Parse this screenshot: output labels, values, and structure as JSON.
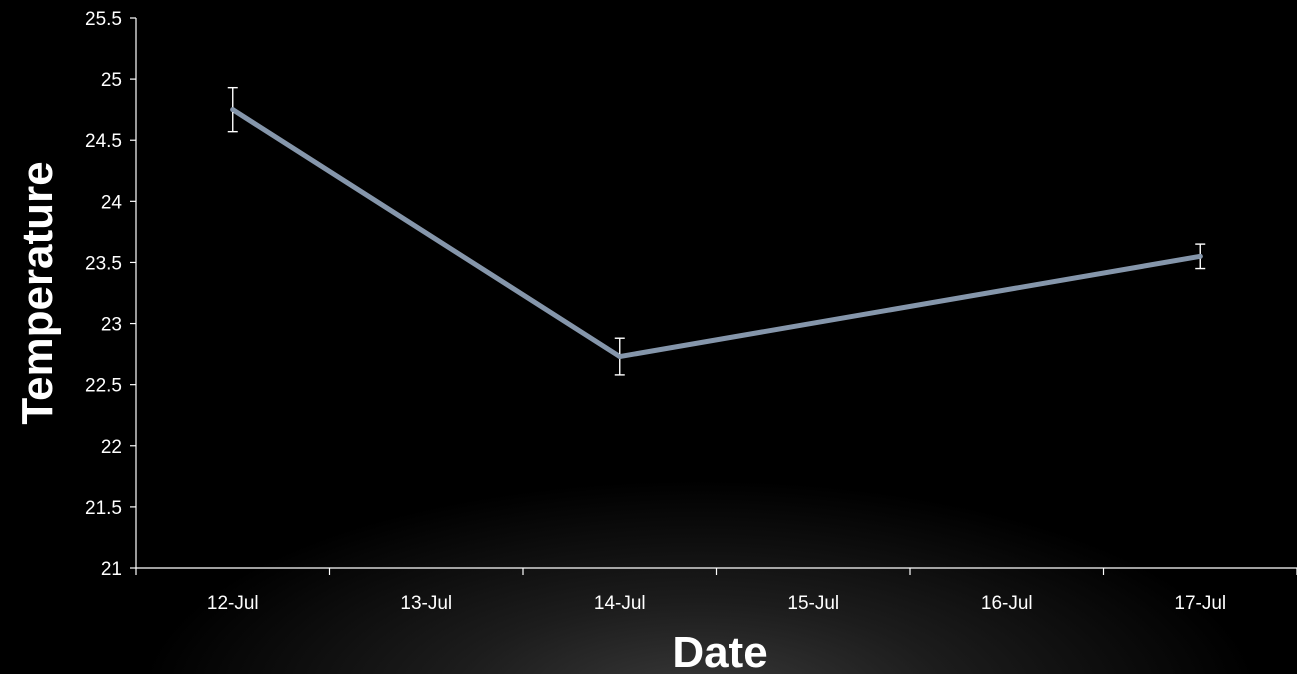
{
  "chart_data": {
    "type": "line",
    "title": "",
    "xlabel": "Date",
    "ylabel": "Temperature",
    "categories": [
      "12-Jul",
      "13-Jul",
      "14-Jul",
      "15-Jul",
      "16-Jul",
      "17-Jul"
    ],
    "y_ticks": [
      "21",
      "21.5",
      "22",
      "22.5",
      "23",
      "23.5",
      "24",
      "24.5",
      "25",
      "25.5"
    ],
    "ylim": [
      21,
      25.5
    ],
    "grid": false,
    "legend": "none",
    "series": [
      {
        "x": [
          "12-Jul",
          "14-Jul",
          "17-Jul"
        ],
        "values": [
          24.75,
          22.73,
          23.55
        ],
        "error": [
          0.18,
          0.15,
          0.1
        ]
      }
    ],
    "colors": {
      "line": "#8596ab",
      "axis": "#ffffff",
      "text": "#ffffff",
      "background": "#000000"
    }
  }
}
